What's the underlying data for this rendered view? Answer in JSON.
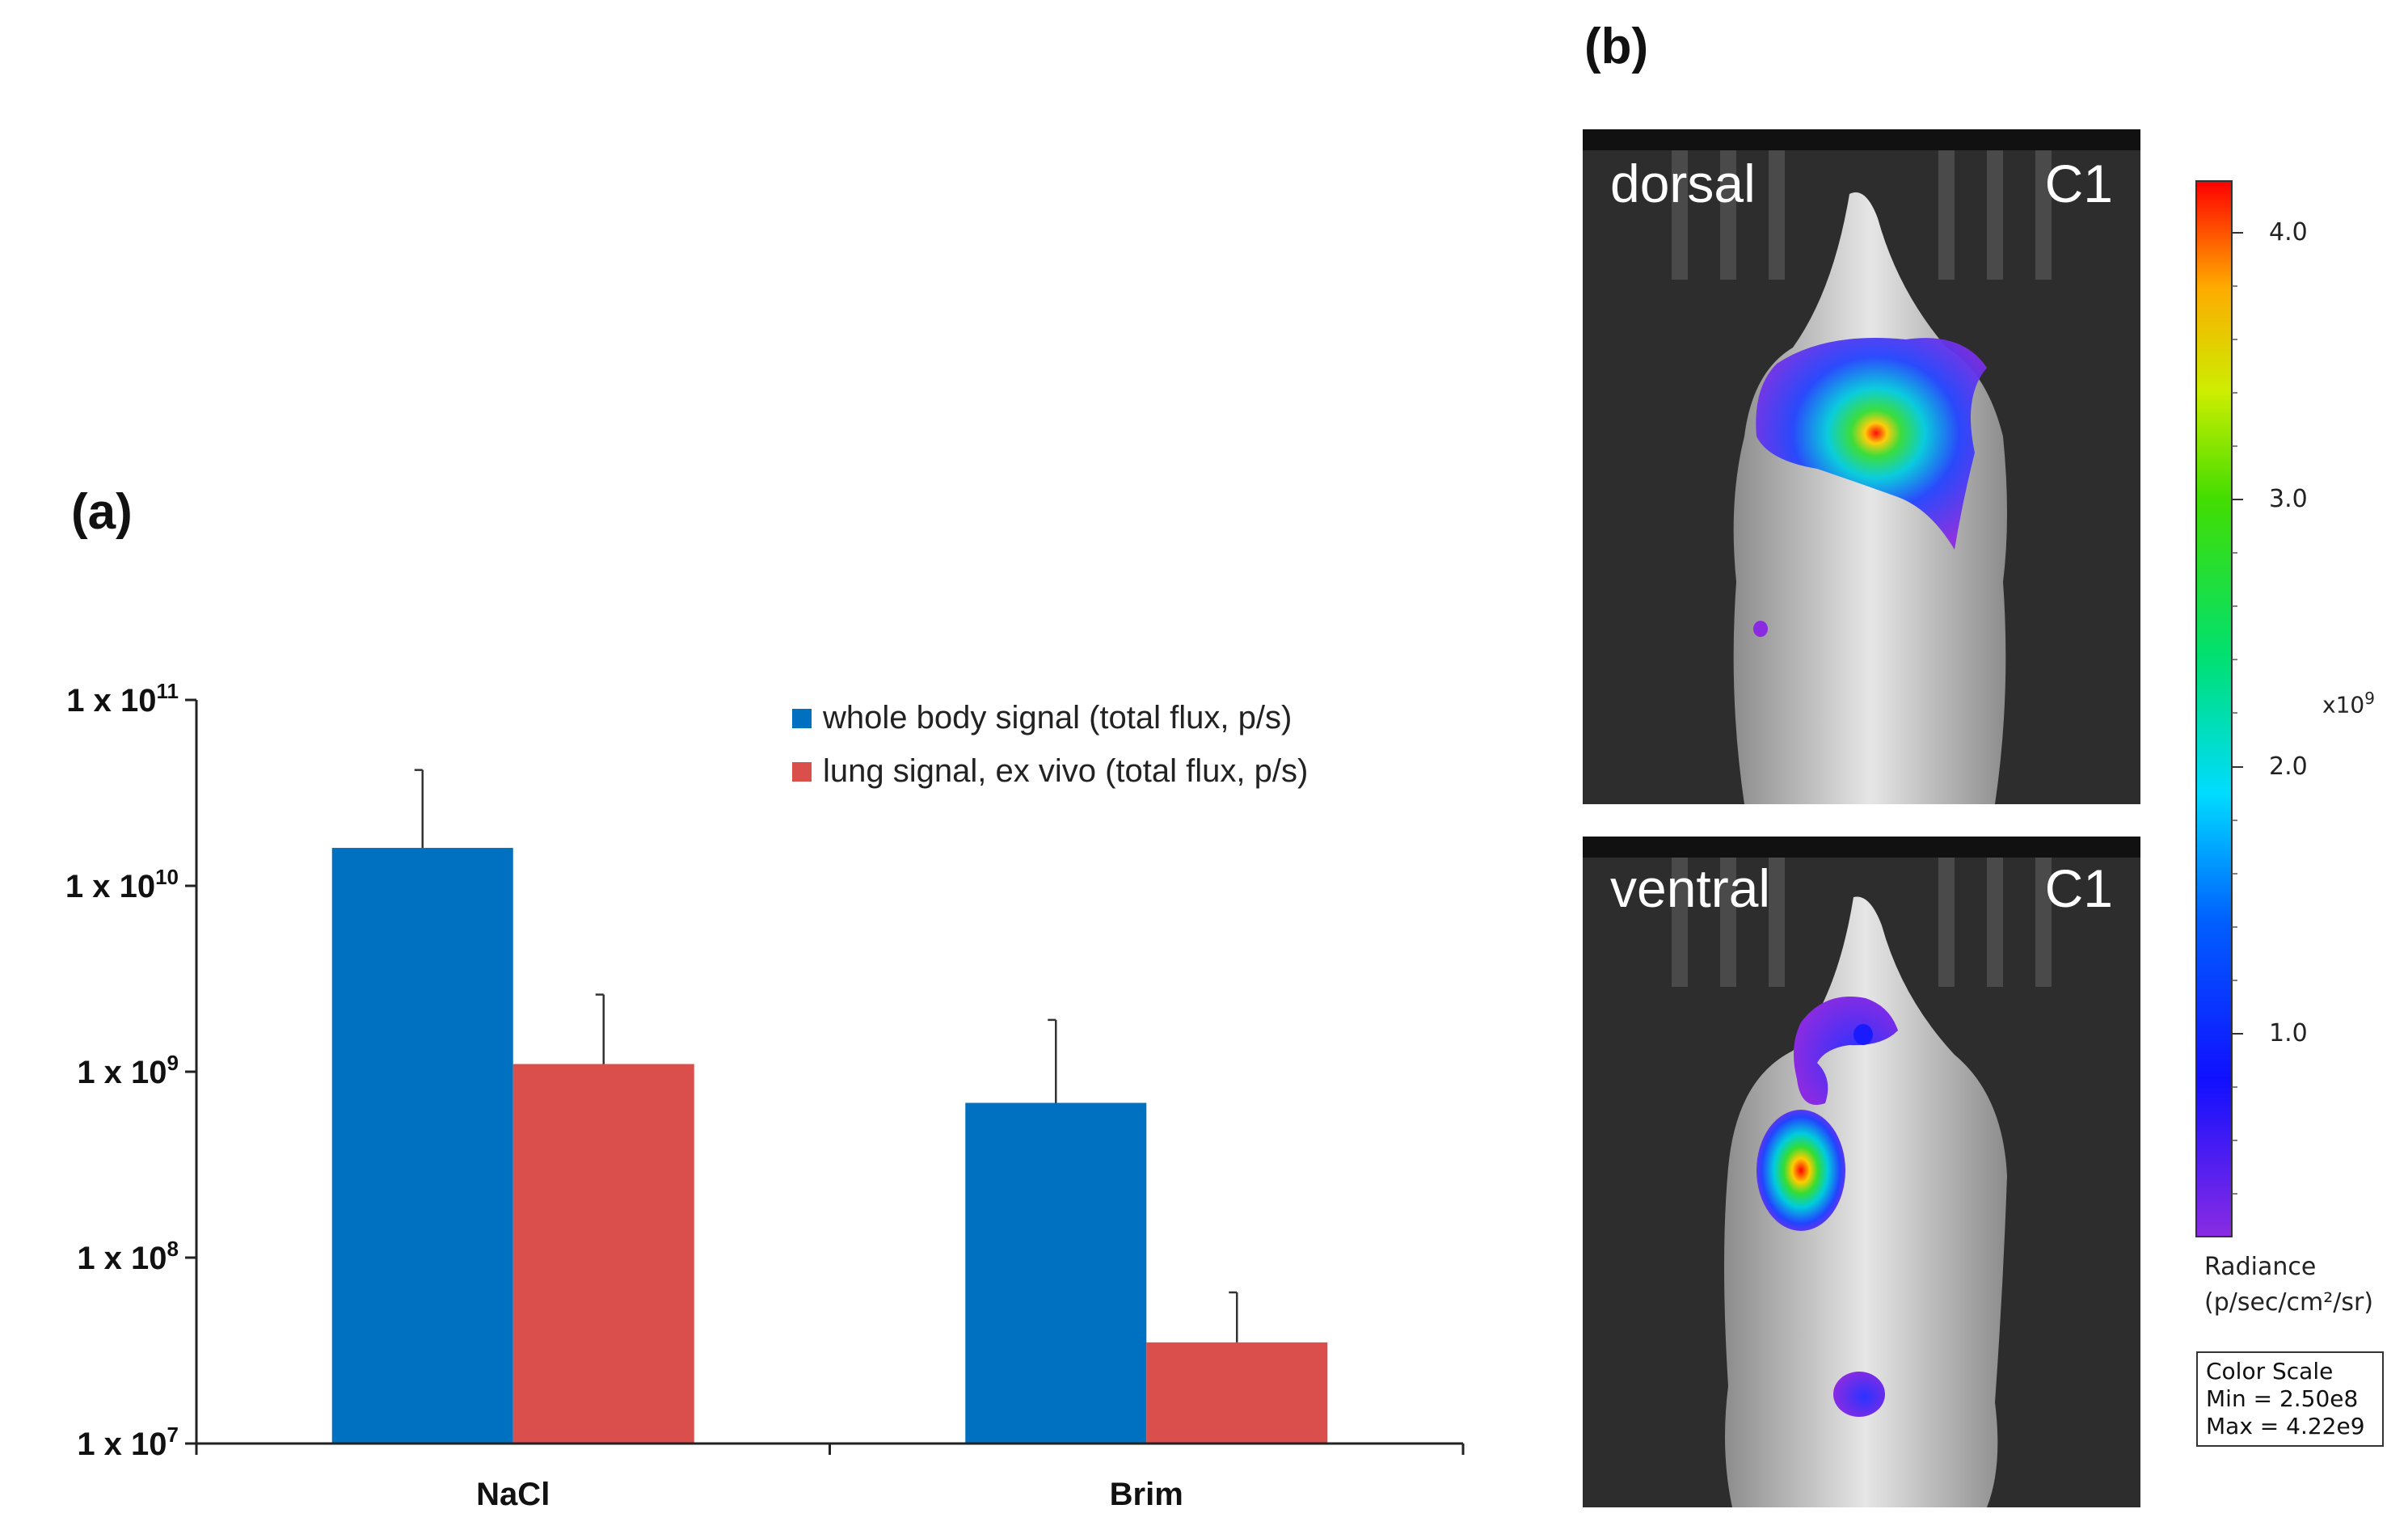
{
  "panel_a_label": "(a)",
  "panel_b_label": "(b)",
  "chart_data": {
    "type": "bar",
    "categories": [
      "NaCl",
      "Brim"
    ],
    "yscale": "log",
    "ylim": [
      10000000,
      100000000000
    ],
    "ytick_labels": [
      {
        "base": "1 x 10",
        "exp": "11",
        "value": 100000000000
      },
      {
        "base": "1 x 10",
        "exp": "10",
        "value": 10000000000
      },
      {
        "base": "1 x 10",
        "exp": "9",
        "value": 1000000000
      },
      {
        "base": "1 x 10",
        "exp": "8",
        "value": 100000000
      },
      {
        "base": "1 x 10",
        "exp": "7",
        "value": 10000000
      }
    ],
    "series": [
      {
        "name": "whole body signal (total flux, p/s)",
        "color": "#0070C0",
        "values": [
          16000000000,
          680000000
        ],
        "errors_upper": [
          42000000000,
          1900000000
        ]
      },
      {
        "name": "lung signal, ex vivo (total flux, p/s)",
        "color": "#DA4F4C",
        "values": [
          1100000000,
          35000000
        ],
        "errors_upper": [
          2600000000,
          65000000
        ]
      }
    ]
  },
  "images": {
    "dorsal": {
      "view": "dorsal",
      "channel": "C1"
    },
    "ventral": {
      "view": "ventral",
      "channel": "C1"
    }
  },
  "colorbar": {
    "ticks": [
      "4.0",
      "3.0",
      "2.0",
      "1.0"
    ],
    "multiplier_base": "x10",
    "multiplier_exp": "9",
    "label_line1": "Radiance",
    "label_line2": "(p/sec/cm²/sr)",
    "scale_title": "Color Scale",
    "scale_min": "Min = 2.50e8",
    "scale_max": "Max = 4.22e9"
  }
}
